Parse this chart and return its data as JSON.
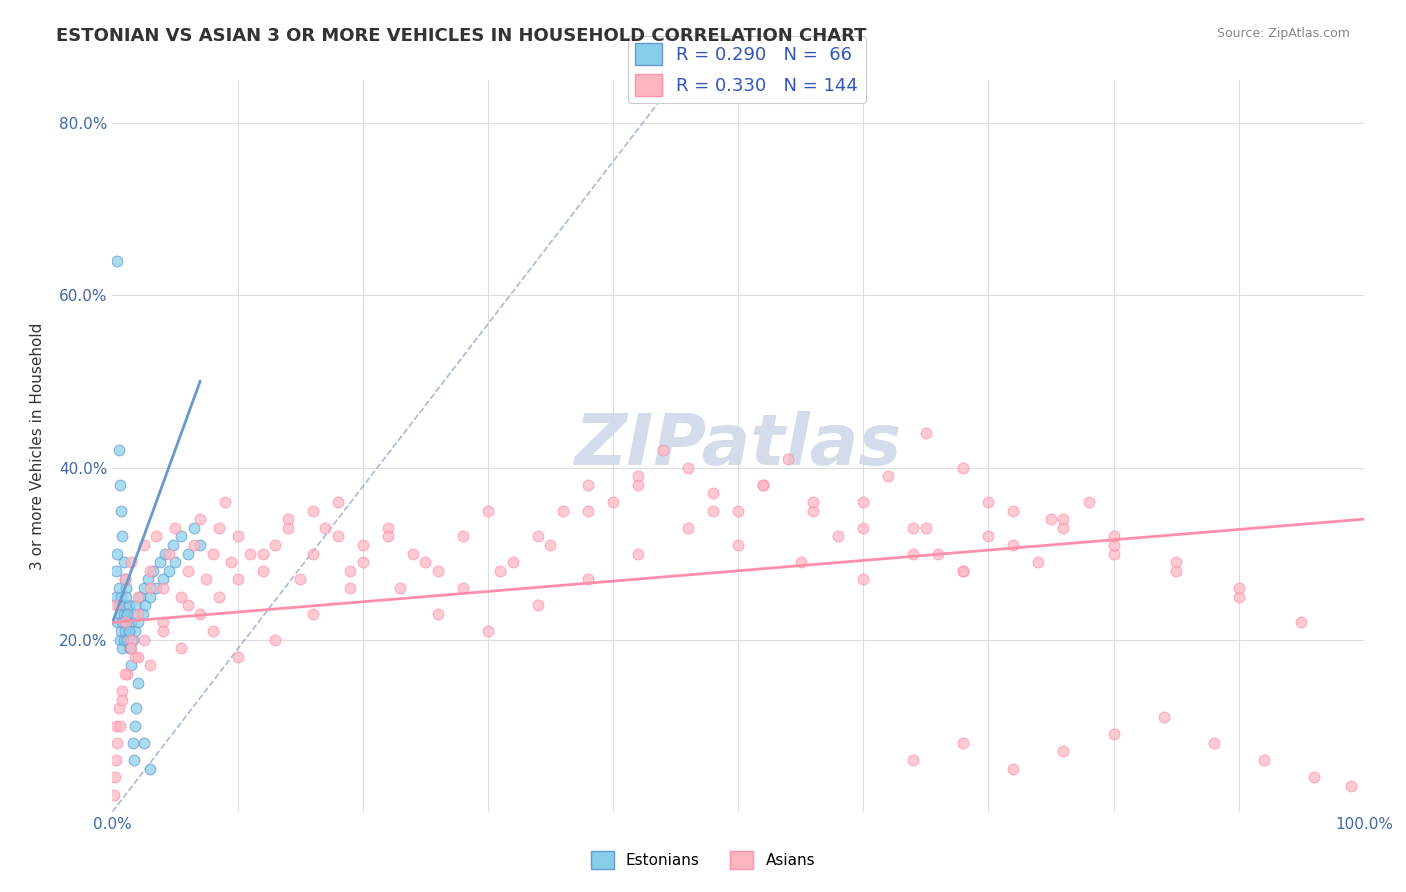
{
  "title": "ESTONIAN VS ASIAN 3 OR MORE VEHICLES IN HOUSEHOLD CORRELATION CHART",
  "source_text": "Source: ZipAtlas.com",
  "xlabel": "",
  "ylabel": "3 or more Vehicles in Household",
  "xlim": [
    0.0,
    1.0
  ],
  "ylim": [
    0.0,
    0.85
  ],
  "xticks": [
    0.0,
    0.1,
    0.2,
    0.3,
    0.4,
    0.5,
    0.6,
    0.7,
    0.8,
    0.9,
    1.0
  ],
  "xticklabels": [
    "0.0%",
    "",
    "",
    "",
    "",
    "",
    "",
    "",
    "",
    "",
    "100.0%"
  ],
  "yticks": [
    0.0,
    0.1,
    0.2,
    0.3,
    0.4,
    0.5,
    0.6,
    0.7,
    0.8
  ],
  "yticklabels": [
    "",
    "",
    "20.0%",
    "",
    "40.0%",
    "",
    "60.0%",
    "",
    "80.0%"
  ],
  "estonian_color": "#87CEEB",
  "asian_color": "#FFB6C1",
  "estonian_edge": "#6699CC",
  "asian_edge": "#FF8FAB",
  "estonian_R": 0.29,
  "estonian_N": 66,
  "asian_R": 0.33,
  "asian_N": 144,
  "watermark": "ZIPatlas",
  "watermark_color": "#d0d8e8",
  "legend_r_color": "#3355BB",
  "background_color": "#ffffff",
  "grid_color": "#dddddd",
  "estonian_x": [
    0.003,
    0.003,
    0.004,
    0.004,
    0.005,
    0.005,
    0.006,
    0.006,
    0.007,
    0.007,
    0.008,
    0.008,
    0.009,
    0.009,
    0.01,
    0.01,
    0.011,
    0.011,
    0.012,
    0.012,
    0.013,
    0.013,
    0.014,
    0.015,
    0.016,
    0.017,
    0.018,
    0.019,
    0.02,
    0.022,
    0.024,
    0.025,
    0.026,
    0.028,
    0.03,
    0.032,
    0.035,
    0.038,
    0.04,
    0.042,
    0.045,
    0.048,
    0.05,
    0.055,
    0.06,
    0.065,
    0.07,
    0.004,
    0.005,
    0.006,
    0.007,
    0.008,
    0.009,
    0.01,
    0.011,
    0.012,
    0.013,
    0.014,
    0.015,
    0.016,
    0.017,
    0.018,
    0.019,
    0.02,
    0.025,
    0.03
  ],
  "estonian_y": [
    0.25,
    0.28,
    0.22,
    0.3,
    0.26,
    0.24,
    0.2,
    0.23,
    0.21,
    0.25,
    0.19,
    0.22,
    0.2,
    0.23,
    0.21,
    0.24,
    0.22,
    0.26,
    0.2,
    0.23,
    0.21,
    0.24,
    0.19,
    0.22,
    0.2,
    0.23,
    0.21,
    0.24,
    0.22,
    0.25,
    0.23,
    0.26,
    0.24,
    0.27,
    0.25,
    0.28,
    0.26,
    0.29,
    0.27,
    0.3,
    0.28,
    0.31,
    0.29,
    0.32,
    0.3,
    0.33,
    0.31,
    0.64,
    0.42,
    0.38,
    0.35,
    0.32,
    0.29,
    0.27,
    0.25,
    0.23,
    0.21,
    0.19,
    0.17,
    0.08,
    0.06,
    0.1,
    0.12,
    0.15,
    0.08,
    0.05
  ],
  "asian_x": [
    0.003,
    0.01,
    0.015,
    0.02,
    0.025,
    0.03,
    0.035,
    0.04,
    0.045,
    0.05,
    0.055,
    0.06,
    0.065,
    0.07,
    0.075,
    0.08,
    0.085,
    0.09,
    0.095,
    0.1,
    0.11,
    0.12,
    0.13,
    0.14,
    0.15,
    0.16,
    0.17,
    0.18,
    0.19,
    0.2,
    0.22,
    0.24,
    0.26,
    0.28,
    0.3,
    0.32,
    0.34,
    0.36,
    0.38,
    0.4,
    0.42,
    0.44,
    0.46,
    0.48,
    0.5,
    0.52,
    0.54,
    0.56,
    0.58,
    0.6,
    0.62,
    0.64,
    0.66,
    0.68,
    0.7,
    0.72,
    0.74,
    0.76,
    0.78,
    0.8,
    0.65,
    0.68,
    0.42,
    0.38,
    0.35,
    0.31,
    0.28,
    0.25,
    0.22,
    0.19,
    0.16,
    0.13,
    0.1,
    0.08,
    0.06,
    0.04,
    0.025,
    0.018,
    0.012,
    0.008,
    0.005,
    0.003,
    0.01,
    0.015,
    0.02,
    0.03,
    0.04,
    0.055,
    0.07,
    0.085,
    0.1,
    0.12,
    0.14,
    0.16,
    0.18,
    0.2,
    0.23,
    0.26,
    0.3,
    0.34,
    0.38,
    0.42,
    0.46,
    0.5,
    0.55,
    0.6,
    0.65,
    0.7,
    0.75,
    0.8,
    0.85,
    0.9,
    0.95,
    0.48,
    0.52,
    0.56,
    0.6,
    0.64,
    0.68,
    0.72,
    0.76,
    0.8,
    0.85,
    0.9,
    0.64,
    0.68,
    0.72,
    0.76,
    0.8,
    0.84,
    0.88,
    0.92,
    0.96,
    0.99,
    0.03,
    0.02,
    0.015,
    0.01,
    0.008,
    0.006,
    0.004,
    0.003,
    0.002,
    0.001
  ],
  "asian_y": [
    0.24,
    0.27,
    0.29,
    0.25,
    0.31,
    0.28,
    0.32,
    0.26,
    0.3,
    0.33,
    0.25,
    0.28,
    0.31,
    0.34,
    0.27,
    0.3,
    0.33,
    0.36,
    0.29,
    0.32,
    0.3,
    0.28,
    0.31,
    0.34,
    0.27,
    0.3,
    0.33,
    0.36,
    0.28,
    0.31,
    0.33,
    0.3,
    0.28,
    0.32,
    0.35,
    0.29,
    0.32,
    0.35,
    0.38,
    0.36,
    0.39,
    0.42,
    0.4,
    0.37,
    0.35,
    0.38,
    0.41,
    0.35,
    0.32,
    0.36,
    0.39,
    0.33,
    0.3,
    0.28,
    0.32,
    0.35,
    0.29,
    0.33,
    0.36,
    0.3,
    0.44,
    0.4,
    0.38,
    0.35,
    0.31,
    0.28,
    0.26,
    0.29,
    0.32,
    0.26,
    0.23,
    0.2,
    0.18,
    0.21,
    0.24,
    0.22,
    0.2,
    0.18,
    0.16,
    0.14,
    0.12,
    0.1,
    0.22,
    0.2,
    0.18,
    0.17,
    0.21,
    0.19,
    0.23,
    0.25,
    0.27,
    0.3,
    0.33,
    0.35,
    0.32,
    0.29,
    0.26,
    0.23,
    0.21,
    0.24,
    0.27,
    0.3,
    0.33,
    0.31,
    0.29,
    0.27,
    0.33,
    0.36,
    0.34,
    0.31,
    0.28,
    0.25,
    0.22,
    0.35,
    0.38,
    0.36,
    0.33,
    0.3,
    0.28,
    0.31,
    0.34,
    0.32,
    0.29,
    0.26,
    0.06,
    0.08,
    0.05,
    0.07,
    0.09,
    0.11,
    0.08,
    0.06,
    0.04,
    0.03,
    0.26,
    0.23,
    0.19,
    0.16,
    0.13,
    0.1,
    0.08,
    0.06,
    0.04,
    0.02
  ]
}
